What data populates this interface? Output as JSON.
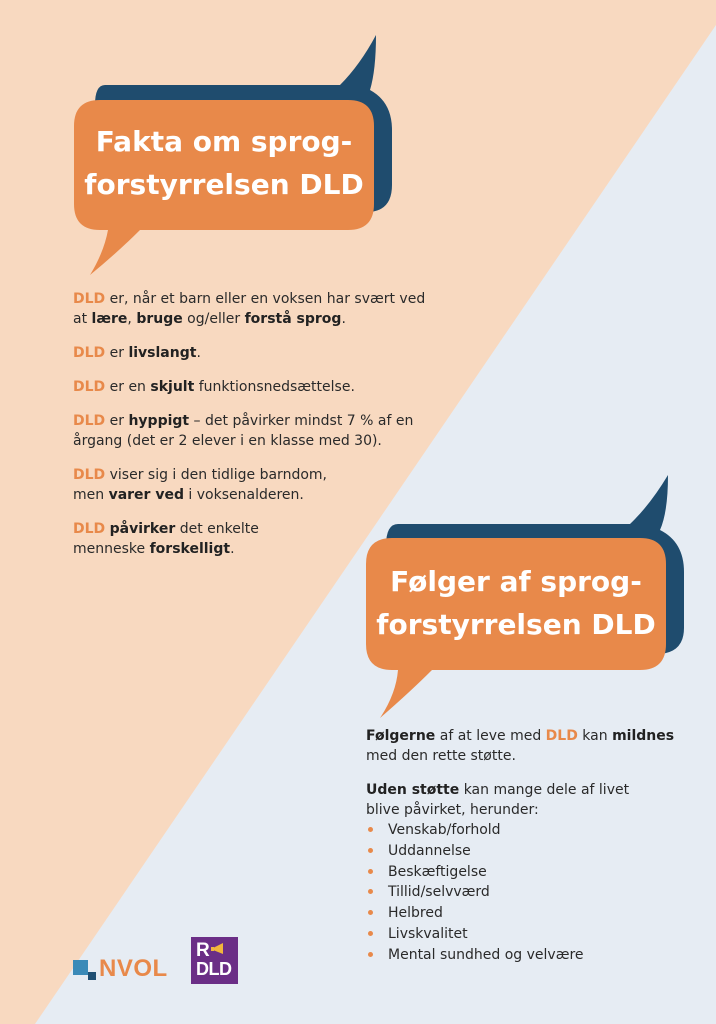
{
  "colors": {
    "peach": "#f8d9c0",
    "light_blue": "#e6ecf3",
    "orange": "#e8894a",
    "navy": "#1f4c6e"
  },
  "section1": {
    "title_line1": "Fakta om sprog-",
    "title_line2": "forstyrrelsen DLD",
    "facts": [
      {
        "parts": [
          {
            "t": "DLD",
            "s": "o"
          },
          {
            "t": " er, når et barn eller en voksen har svært ved"
          },
          {
            "br": true
          },
          {
            "t": "at "
          },
          {
            "t": "lære",
            "s": "b"
          },
          {
            "t": ", "
          },
          {
            "t": "bruge",
            "s": "b"
          },
          {
            "t": " og/eller "
          },
          {
            "t": "forstå sprog",
            "s": "b"
          },
          {
            "t": "."
          }
        ]
      },
      {
        "parts": [
          {
            "t": "DLD",
            "s": "o"
          },
          {
            "t": " er "
          },
          {
            "t": "livslangt",
            "s": "b"
          },
          {
            "t": "."
          }
        ]
      },
      {
        "parts": [
          {
            "t": "DLD",
            "s": "o"
          },
          {
            "t": " er en "
          },
          {
            "t": "skjult",
            "s": "b"
          },
          {
            "t": " funktionsnedsættelse."
          }
        ]
      },
      {
        "parts": [
          {
            "t": "DLD",
            "s": "o"
          },
          {
            "t": " er "
          },
          {
            "t": "hyppigt",
            "s": "b"
          },
          {
            "t": " – det påvirker mindst 7 % af en"
          },
          {
            "br": true
          },
          {
            "t": "årgang (det er 2 elever i en klasse med 30)."
          }
        ]
      },
      {
        "parts": [
          {
            "t": "DLD",
            "s": "o"
          },
          {
            "t": " viser sig i den tidlige barndom,"
          },
          {
            "br": true
          },
          {
            "t": "men "
          },
          {
            "t": "varer ved",
            "s": "b"
          },
          {
            "t": " i voksenalderen."
          }
        ]
      },
      {
        "parts": [
          {
            "t": "DLD",
            "s": "o"
          },
          {
            "t": " "
          },
          {
            "t": "påvirker",
            "s": "b"
          },
          {
            "t": " det enkelte"
          },
          {
            "br": true
          },
          {
            "t": "menneske "
          },
          {
            "t": "forskelligt",
            "s": "b"
          },
          {
            "t": "."
          }
        ]
      }
    ]
  },
  "section2": {
    "title_line1": "Følger af sprog-",
    "title_line2": "forstyrrelsen DLD",
    "paragraphs": [
      {
        "parts": [
          {
            "t": "Følgerne",
            "s": "b"
          },
          {
            "t": " af at leve med "
          },
          {
            "t": "DLD",
            "s": "o"
          },
          {
            "t": " kan "
          },
          {
            "t": "mildnes",
            "s": "b"
          },
          {
            "br": true
          },
          {
            "t": "med den rette støtte."
          }
        ]
      },
      {
        "parts": [
          {
            "t": "Uden støtte",
            "s": "b"
          },
          {
            "t": " kan mange dele af livet"
          },
          {
            "br": true
          },
          {
            "t": "blive påvirket, herunder:"
          }
        ]
      }
    ],
    "list": [
      "Venskab/forhold",
      "Uddannelse",
      "Beskæftigelse",
      "Tillid/selvværd",
      "Helbred",
      "Livskvalitet",
      "Mental sundhed og velvære"
    ]
  },
  "logos": {
    "nvol": "NVOL",
    "rdld_top": "R",
    "rdld_bottom": "DLD"
  }
}
